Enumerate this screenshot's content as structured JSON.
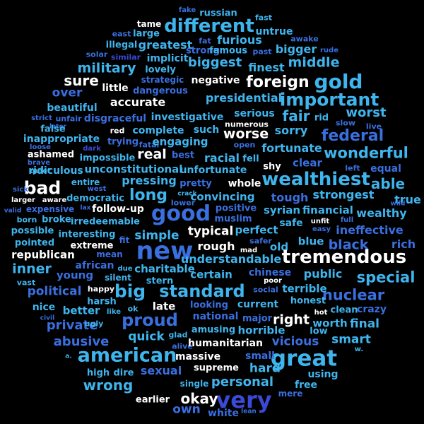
{
  "palette": {
    "white": "#ffffff",
    "light_blue": "#3fb5ee",
    "mid_blue": "#3a6fe0",
    "deep_blue": "#3b49d6"
  },
  "words": [
    {
      "text": "fake",
      "color": "mid_blue"
    },
    {
      "text": "russian",
      "color": "light_blue"
    },
    {
      "text": "fast",
      "color": "light_blue"
    },
    {
      "text": "tame",
      "color": "white"
    },
    {
      "text": "different",
      "color": "light_blue"
    },
    {
      "text": "east",
      "color": "mid_blue"
    },
    {
      "text": "large",
      "color": "light_blue"
    },
    {
      "text": "untrue",
      "color": "light_blue"
    },
    {
      "text": "awake",
      "color": "mid_blue"
    },
    {
      "text": "fat",
      "color": "mid_blue"
    },
    {
      "text": "furious",
      "color": "light_blue"
    },
    {
      "text": "illegal",
      "color": "light_blue"
    },
    {
      "text": "greatest",
      "color": "light_blue"
    },
    {
      "text": "strong",
      "color": "mid_blue"
    },
    {
      "text": "bigger",
      "color": "light_blue"
    },
    {
      "text": "rude",
      "color": "mid_blue"
    },
    {
      "text": "famous",
      "color": "light_blue"
    },
    {
      "text": "past",
      "color": "mid_blue"
    },
    {
      "text": "solar",
      "color": "mid_blue"
    },
    {
      "text": "similar",
      "color": "deep_blue"
    },
    {
      "text": "implicit",
      "color": "light_blue"
    },
    {
      "text": "biggest",
      "color": "light_blue"
    },
    {
      "text": "middle",
      "color": "light_blue"
    },
    {
      "text": "military",
      "color": "light_blue"
    },
    {
      "text": "lovely",
      "color": "light_blue"
    },
    {
      "text": "finest",
      "color": "light_blue"
    },
    {
      "text": "sure",
      "color": "white"
    },
    {
      "text": "strategic",
      "color": "mid_blue"
    },
    {
      "text": "negative",
      "color": "white"
    },
    {
      "text": "foreign",
      "color": "white"
    },
    {
      "text": "gold",
      "color": "light_blue"
    },
    {
      "text": "little",
      "color": "white"
    },
    {
      "text": "over",
      "color": "mid_blue"
    },
    {
      "text": "dangerous",
      "color": "mid_blue"
    },
    {
      "text": "important",
      "color": "light_blue"
    },
    {
      "text": "presidential",
      "color": "light_blue"
    },
    {
      "text": "accurate",
      "color": "white"
    },
    {
      "text": "beautiful",
      "color": "light_blue"
    },
    {
      "text": "fair",
      "color": "light_blue"
    },
    {
      "text": "worst",
      "color": "light_blue"
    },
    {
      "text": "strict",
      "color": "mid_blue"
    },
    {
      "text": "unfair",
      "color": "mid_blue"
    },
    {
      "text": "disgraceful",
      "color": "mid_blue"
    },
    {
      "text": "investigative",
      "color": "light_blue"
    },
    {
      "text": "serious",
      "color": "light_blue"
    },
    {
      "text": "rid",
      "color": "light_blue"
    },
    {
      "text": "later",
      "color": "mid_blue"
    },
    {
      "text": "slow",
      "color": "mid_blue"
    },
    {
      "text": "inappropriate",
      "color": "light_blue"
    },
    {
      "text": "numerous",
      "color": "white"
    },
    {
      "text": "live",
      "color": "mid_blue"
    },
    {
      "text": "false",
      "color": "light_blue"
    },
    {
      "text": "red",
      "color": "white"
    },
    {
      "text": "complete",
      "color": "light_blue"
    },
    {
      "text": "such",
      "color": "light_blue"
    },
    {
      "text": "worse",
      "color": "white"
    },
    {
      "text": "sorry",
      "color": "light_blue"
    },
    {
      "text": "federal",
      "color": "mid_blue"
    },
    {
      "text": "trying",
      "color": "mid_blue"
    },
    {
      "text": "fatal",
      "color": "mid_blue"
    },
    {
      "text": "engaging",
      "color": "light_blue"
    },
    {
      "text": "open",
      "color": "mid_blue"
    },
    {
      "text": "loose",
      "color": "mid_blue"
    },
    {
      "text": "dark",
      "color": "deep_blue"
    },
    {
      "text": "fortunate",
      "color": "light_blue"
    },
    {
      "text": "ashamed",
      "color": "white"
    },
    {
      "text": "impossible",
      "color": "light_blue"
    },
    {
      "text": "real",
      "color": "white"
    },
    {
      "text": "best",
      "color": "mid_blue"
    },
    {
      "text": "racial",
      "color": "light_blue"
    },
    {
      "text": "fell",
      "color": "light_blue"
    },
    {
      "text": "wonderful",
      "color": "light_blue"
    },
    {
      "text": "brave",
      "color": "mid_blue"
    },
    {
      "text": "clear",
      "color": "mid_blue"
    },
    {
      "text": "quiet",
      "color": "light_blue"
    },
    {
      "text": "ridiculous",
      "color": "light_blue"
    },
    {
      "text": "unconstitutional",
      "color": "light_blue"
    },
    {
      "text": "unfortunate",
      "color": "light_blue"
    },
    {
      "text": "shy",
      "color": "white"
    },
    {
      "text": "left",
      "color": "mid_blue"
    },
    {
      "text": "equal",
      "color": "mid_blue"
    },
    {
      "text": "wealthiest",
      "color": "light_blue"
    },
    {
      "text": "bad",
      "color": "white"
    },
    {
      "text": "entire",
      "color": "light_blue"
    },
    {
      "text": "pressing",
      "color": "light_blue"
    },
    {
      "text": "pretty",
      "color": "mid_blue"
    },
    {
      "text": "whole",
      "color": "white"
    },
    {
      "text": "able",
      "color": "light_blue"
    },
    {
      "text": "sick",
      "color": "mid_blue"
    },
    {
      "text": "west",
      "color": "mid_blue"
    },
    {
      "text": "long",
      "color": "light_blue"
    },
    {
      "text": "crack",
      "color": "light_blue"
    },
    {
      "text": "tough",
      "color": "mid_blue"
    },
    {
      "text": "strongest",
      "color": "light_blue"
    },
    {
      "text": "larger",
      "color": "white"
    },
    {
      "text": "aware",
      "color": "white"
    },
    {
      "text": "democratic",
      "color": "light_blue"
    },
    {
      "text": "lower",
      "color": "mid_blue"
    },
    {
      "text": "convincing",
      "color": "light_blue"
    },
    {
      "text": "true",
      "color": "light_blue"
    },
    {
      "text": "valid",
      "color": "mid_blue"
    },
    {
      "text": "expensive",
      "color": "mid_blue"
    },
    {
      "text": "follow-up",
      "color": "white"
    },
    {
      "text": "good",
      "color": "mid_blue"
    },
    {
      "text": "positive",
      "color": "mid_blue"
    },
    {
      "text": "syrian",
      "color": "light_blue"
    },
    {
      "text": "financial",
      "color": "light_blue"
    },
    {
      "text": "wild",
      "color": "mid_blue"
    },
    {
      "text": "wealthy",
      "color": "light_blue"
    },
    {
      "text": "born",
      "color": "light_blue"
    },
    {
      "text": "broke",
      "color": "light_blue"
    },
    {
      "text": "irredeemable",
      "color": "light_blue"
    },
    {
      "text": "lax",
      "color": "mid_blue"
    },
    {
      "text": "muslim",
      "color": "mid_blue"
    },
    {
      "text": "safe",
      "color": "light_blue"
    },
    {
      "text": "unfit",
      "color": "white"
    },
    {
      "text": "full",
      "color": "mid_blue"
    },
    {
      "text": "possible",
      "color": "light_blue"
    },
    {
      "text": "simple",
      "color": "light_blue"
    },
    {
      "text": "typical",
      "color": "white"
    },
    {
      "text": "perfect",
      "color": "light_blue"
    },
    {
      "text": "easy",
      "color": "mid_blue"
    },
    {
      "text": "ineffective",
      "color": "mid_blue"
    },
    {
      "text": "interesting",
      "color": "light_blue"
    },
    {
      "text": "pointed",
      "color": "light_blue"
    },
    {
      "text": "fit",
      "color": "mid_blue"
    },
    {
      "text": "extreme",
      "color": "white"
    },
    {
      "text": "rough",
      "color": "white"
    },
    {
      "text": "safer",
      "color": "mid_blue"
    },
    {
      "text": "blue",
      "color": "light_blue"
    },
    {
      "text": "black",
      "color": "mid_blue"
    },
    {
      "text": "rich",
      "color": "mid_blue"
    },
    {
      "text": "new",
      "color": "mid_blue"
    },
    {
      "text": "old",
      "color": "light_blue"
    },
    {
      "text": "mad",
      "color": "white"
    },
    {
      "text": "republican",
      "color": "white"
    },
    {
      "text": "mean",
      "color": "mid_blue"
    },
    {
      "text": "tremendous",
      "color": "white"
    },
    {
      "text": "african",
      "color": "mid_blue"
    },
    {
      "text": "understandable",
      "color": "light_blue"
    },
    {
      "text": "inner",
      "color": "light_blue"
    },
    {
      "text": "due",
      "color": "light_blue"
    },
    {
      "text": "charitable",
      "color": "light_blue"
    },
    {
      "text": "young",
      "color": "mid_blue"
    },
    {
      "text": "certain",
      "color": "light_blue"
    },
    {
      "text": "chinese",
      "color": "mid_blue"
    },
    {
      "text": "public",
      "color": "light_blue"
    },
    {
      "text": "special",
      "color": "light_blue"
    },
    {
      "text": "silent",
      "color": "light_blue"
    },
    {
      "text": "stern",
      "color": "light_blue"
    },
    {
      "text": "poor",
      "color": "white"
    },
    {
      "text": "vast",
      "color": "light_blue"
    },
    {
      "text": "happy",
      "color": "white"
    },
    {
      "text": "big",
      "color": "light_blue"
    },
    {
      "text": "standard",
      "color": "light_blue"
    },
    {
      "text": "current",
      "color": "light_blue"
    },
    {
      "text": "social",
      "color": "mid_blue"
    },
    {
      "text": "terrible",
      "color": "light_blue"
    },
    {
      "text": "political",
      "color": "mid_blue"
    },
    {
      "text": "nuclear",
      "color": "mid_blue"
    },
    {
      "text": "nice",
      "color": "light_blue"
    },
    {
      "text": "harsh",
      "color": "light_blue"
    },
    {
      "text": "late",
      "color": "white"
    },
    {
      "text": "honest",
      "color": "light_blue"
    },
    {
      "text": "better",
      "color": "light_blue"
    },
    {
      "text": "like",
      "color": "light_blue"
    },
    {
      "text": "ok",
      "color": "light_blue"
    },
    {
      "text": "looking",
      "color": "mid_blue"
    },
    {
      "text": "hot",
      "color": "white"
    },
    {
      "text": "clean",
      "color": "light_blue"
    },
    {
      "text": "crazy",
      "color": "mid_blue"
    },
    {
      "text": "civil",
      "color": "mid_blue"
    },
    {
      "text": "national",
      "color": "mid_blue"
    },
    {
      "text": "major",
      "color": "mid_blue"
    },
    {
      "text": "right",
      "color": "white"
    },
    {
      "text": "proud",
      "color": "mid_blue"
    },
    {
      "text": "private",
      "color": "mid_blue"
    },
    {
      "text": "ugly",
      "color": "light_blue"
    },
    {
      "text": "horrible",
      "color": "light_blue"
    },
    {
      "text": "worth",
      "color": "light_blue"
    },
    {
      "text": "final",
      "color": "light_blue"
    },
    {
      "text": "quick",
      "color": "light_blue"
    },
    {
      "text": "glad",
      "color": "light_blue"
    },
    {
      "text": "amusing",
      "color": "light_blue"
    },
    {
      "text": "low",
      "color": "light_blue"
    },
    {
      "text": "abusive",
      "color": "mid_blue"
    },
    {
      "text": "vicious",
      "color": "mid_blue"
    },
    {
      "text": "smart",
      "color": "light_blue"
    },
    {
      "text": "alive",
      "color": "mid_blue"
    },
    {
      "text": "humanitarian",
      "color": "white"
    },
    {
      "text": "american",
      "color": "light_blue"
    },
    {
      "text": "massive",
      "color": "white"
    },
    {
      "text": "great",
      "color": "light_blue"
    },
    {
      "text": "w.",
      "color": "light_blue"
    },
    {
      "text": "small",
      "color": "mid_blue"
    },
    {
      "text": "a.",
      "color": "light_blue"
    },
    {
      "text": "wrong",
      "color": "light_blue"
    },
    {
      "text": "sexual",
      "color": "mid_blue"
    },
    {
      "text": "hard",
      "color": "light_blue"
    },
    {
      "text": "high",
      "color": "light_blue"
    },
    {
      "text": "dire",
      "color": "light_blue"
    },
    {
      "text": "supreme",
      "color": "white"
    },
    {
      "text": "using",
      "color": "light_blue"
    },
    {
      "text": "personal",
      "color": "light_blue"
    },
    {
      "text": "single",
      "color": "light_blue"
    },
    {
      "text": "free",
      "color": "light_blue"
    },
    {
      "text": "very",
      "color": "deep_blue"
    },
    {
      "text": "okay",
      "color": "white"
    },
    {
      "text": "mere",
      "color": "mid_blue"
    },
    {
      "text": "earlier",
      "color": "white"
    },
    {
      "text": "own",
      "color": "mid_blue"
    },
    {
      "text": "white",
      "color": "mid_blue"
    },
    {
      "text": "lean",
      "color": "mid_blue"
    }
  ]
}
